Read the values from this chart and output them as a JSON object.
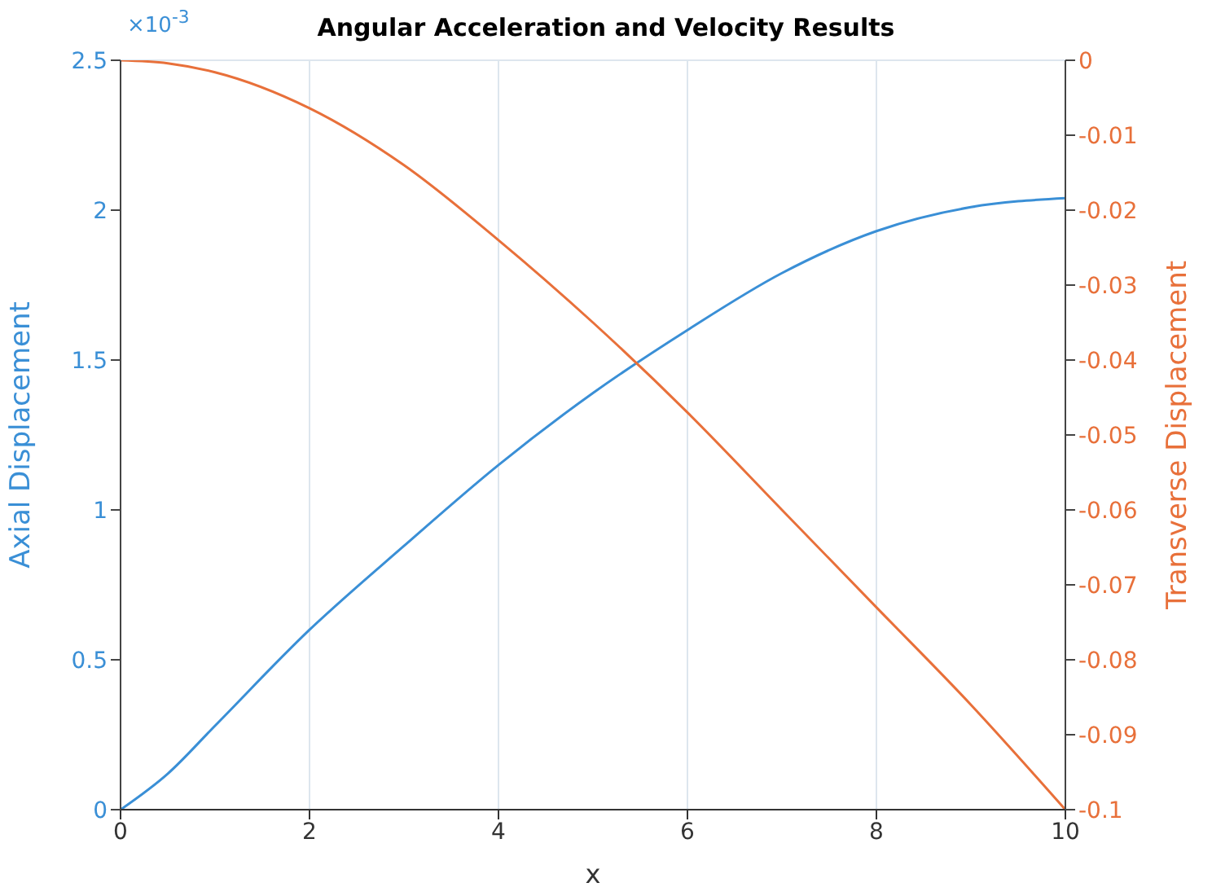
{
  "chart_data": {
    "type": "line",
    "title": "Angular Acceleration and Velocity Results",
    "xlabel": "x",
    "ylabel": "Axial Displacement",
    "y2label": "Transverse Displacement",
    "annotations": [
      "×10$^{-3}$"
    ],
    "x": [
      0,
      0.5,
      1,
      2,
      3,
      4,
      5,
      6,
      7,
      8,
      9,
      10
    ],
    "series": [
      {
        "color": "#3a8fd6",
        "values": [
          0,
          0.12,
          0.28,
          0.6,
          0.88,
          1.15,
          1.39,
          1.6,
          1.79,
          1.93,
          2.01,
          2.04
        ]
      },
      {
        "color": "#e8703a",
        "axis": "y2",
        "values": [
          0,
          -0.0004,
          -0.0016,
          -0.0064,
          -0.014,
          -0.024,
          -0.035,
          -0.047,
          -0.06,
          -0.073,
          -0.086,
          -0.1
        ]
      }
    ],
    "xlim": [
      0,
      10
    ],
    "xticks": [
      0,
      2,
      4,
      6,
      8,
      10
    ],
    "ylim": [
      0,
      2.5
    ],
    "yticks": [
      0,
      0.5,
      1,
      1.5,
      2,
      2.5
    ],
    "y2lim": [
      -0.1,
      0
    ],
    "y2ticks": [
      -0.1,
      -0.09,
      -0.08,
      -0.07,
      -0.06,
      -0.05,
      -0.04,
      -0.03,
      -0.02,
      -0.01,
      0
    ],
    "grid": true,
    "marker": "none",
    "line_style": "solid"
  }
}
